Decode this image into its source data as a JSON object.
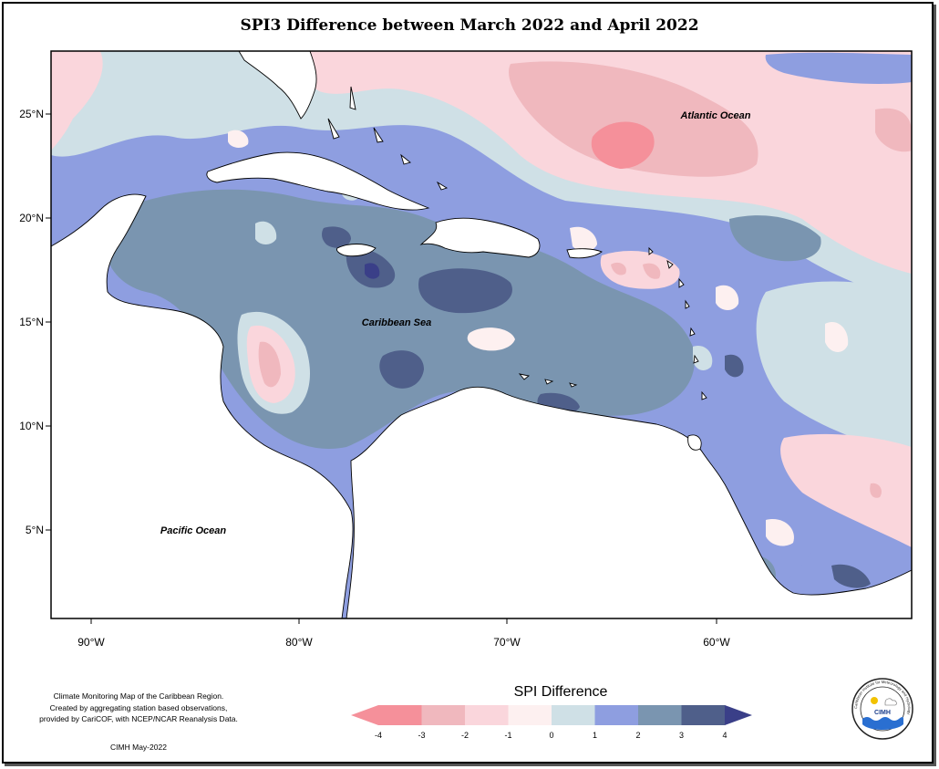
{
  "title": "SPI3 Difference between March 2022 and April 2022",
  "map": {
    "lat_labels": [
      "25°N",
      "20°N",
      "15°N",
      "10°N",
      "5°N"
    ],
    "lon_labels": [
      "90°W",
      "80°W",
      "70°W",
      "60°W"
    ],
    "region_labels": [
      "Atlantic Ocean",
      "Caribbean Sea",
      "Pacific Ocean"
    ]
  },
  "legend": {
    "title": "SPI Difference",
    "ticks": [
      "-4",
      "-3",
      "-2",
      "-1",
      "0",
      "1",
      "2",
      "3",
      "4"
    ],
    "colors": [
      "#f5909a",
      "#f0b8be",
      "#fad6dc",
      "#fdf0f0",
      "#cfe0e6",
      "#8e9ee0",
      "#7a95b0",
      "#4f5f8a",
      "#3a3f88"
    ]
  },
  "credit": {
    "lines": [
      "Climate Monitoring Map of the Caribbean Region.",
      "Created by aggregating station based observations,",
      "provided by CariCOF, with NCEP/NCAR Reanalysis Data."
    ],
    "date": "CIMH May-2022"
  },
  "logo": {
    "text": "CIMH",
    "ring_text": "Caribbean Institute for Meteorology and Hydrology"
  }
}
